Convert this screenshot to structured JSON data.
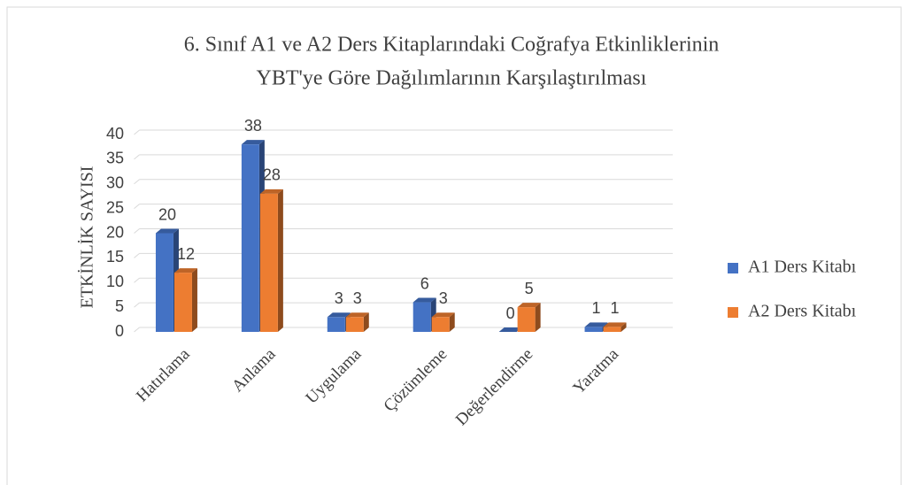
{
  "chart_data": {
    "type": "bar",
    "title": [
      "6. Sınıf A1 ve A2 Ders Kitaplarındaki Coğrafya Etkinliklerinin",
      "YBT'ye Göre Dağılımlarının Karşılaştırılması"
    ],
    "y_label": "ETKİNLİK SAYISI",
    "categories": [
      "Hatırlama",
      "Anlama",
      "Uygulama",
      "Çözümleme",
      "Değerlendirme",
      "Yaratma"
    ],
    "series": [
      {
        "name": "A1 Ders Kitabı",
        "color": "#4472c4",
        "values": [
          20,
          38,
          3,
          6,
          0,
          1
        ]
      },
      {
        "name": "A2 Ders Kitabı",
        "color": "#ed7d31",
        "values": [
          12,
          28,
          3,
          3,
          5,
          1
        ]
      }
    ],
    "ylim": [
      0,
      40
    ],
    "yticks": [
      0,
      5,
      10,
      15,
      20,
      25,
      30,
      35,
      40
    ],
    "grid": true,
    "legend": "right"
  }
}
